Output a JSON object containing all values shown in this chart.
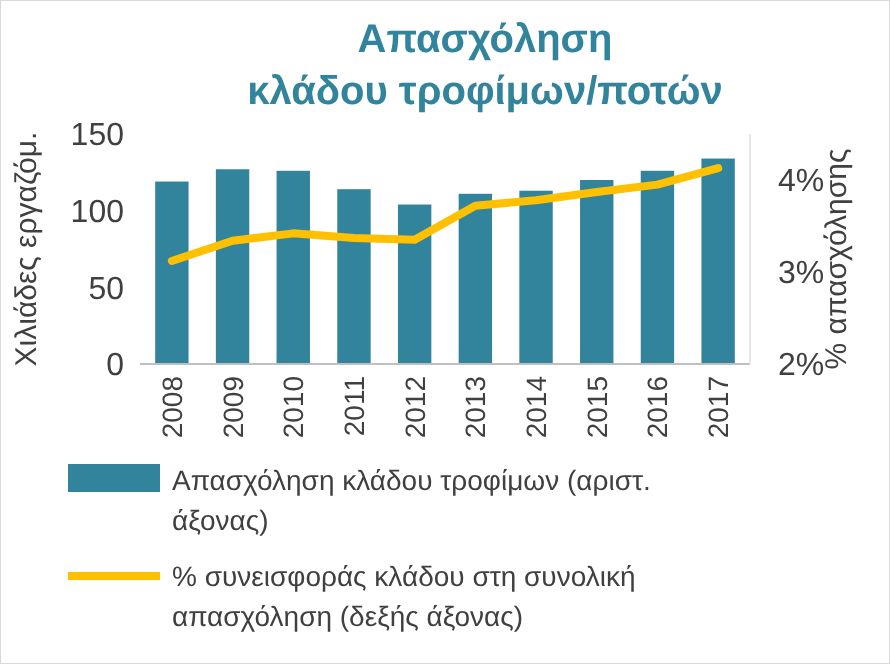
{
  "chart_data": {
    "type": "bar",
    "title": "Απασχόληση\nκλάδου τροφίμων/ποτών",
    "ylabel": "Χιλιάδες εργαζόμ.",
    "y2label": "% απασχόλησης",
    "categories": [
      "2008",
      "2009",
      "2010",
      "2011",
      "2012",
      "2013",
      "2014",
      "2015",
      "2016",
      "2017"
    ],
    "series": [
      {
        "name": "Απασχόληση κλάδου τροφίμων (αριστ. άξονας)",
        "color": "#31849b",
        "values": [
          119,
          127,
          126,
          114,
          104,
          111,
          113,
          120,
          126,
          134
        ]
      },
      {
        "name": "% συνεισφοράς κλάδου στη συνολική απασχόληση (δεξής άξονας)",
        "type": "line",
        "axis": "y2",
        "color": "#ffc000",
        "values": [
          3.12,
          3.34,
          3.42,
          3.37,
          3.35,
          3.72,
          3.78,
          3.87,
          3.95,
          4.13
        ]
      }
    ],
    "ylim": [
      0,
      150
    ],
    "yticks": [
      0,
      50,
      100,
      150
    ],
    "y2lim": [
      2,
      4.5
    ],
    "y2ticks": [
      {
        "value": 2,
        "label": "2%"
      },
      {
        "value": 3,
        "label": "3%"
      },
      {
        "value": 4,
        "label": "4%"
      }
    ],
    "grid": false,
    "legend": "bottom",
    "marker": "none"
  }
}
